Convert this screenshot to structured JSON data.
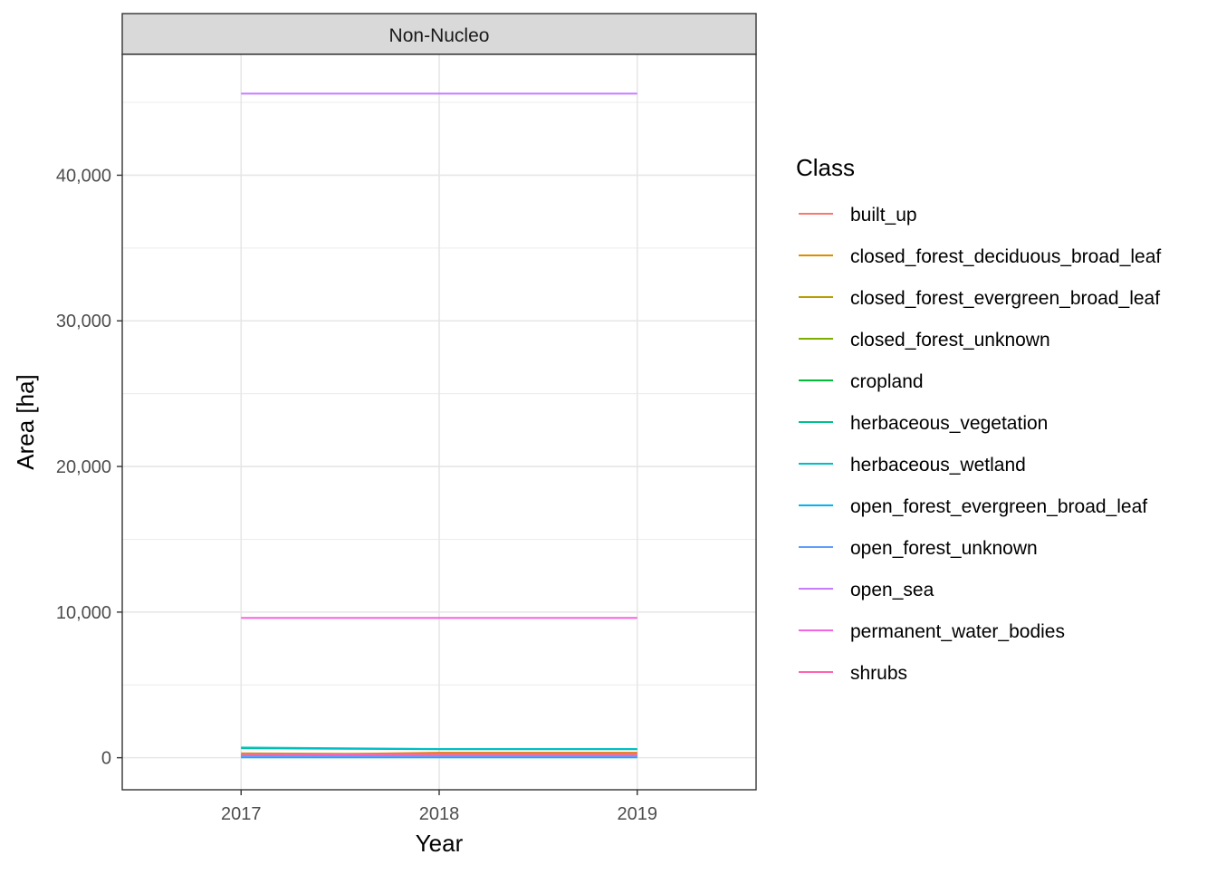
{
  "chart_data": {
    "type": "line",
    "panel_title": "Non-Nucleo",
    "xlabel": "Year",
    "ylabel": "Area [ha]",
    "x": [
      2017,
      2018,
      2019
    ],
    "xlim": [
      2016.4,
      2019.6
    ],
    "ylim": [
      -2200,
      48300
    ],
    "x_ticks": [
      2017,
      2018,
      2019
    ],
    "x_tick_labels": [
      "2017",
      "2018",
      "2019"
    ],
    "y_ticks": [
      0,
      10000,
      20000,
      30000,
      40000
    ],
    "y_tick_labels": [
      "0",
      "10,000",
      "20,000",
      "30,000",
      "40,000"
    ],
    "y_minor_ticks": [
      5000,
      15000,
      25000,
      35000,
      45000
    ],
    "grid": true,
    "legend_title": "Class",
    "legend_position": "right",
    "series": [
      {
        "name": "built_up",
        "color": "#F8766D",
        "values": [
          150,
          350,
          350
        ]
      },
      {
        "name": "closed_forest_deciduous_broad_leaf",
        "color": "#DE8C00",
        "values": [
          200,
          300,
          300
        ]
      },
      {
        "name": "closed_forest_evergreen_broad_leaf",
        "color": "#B79F00",
        "values": [
          300,
          250,
          250
        ]
      },
      {
        "name": "closed_forest_unknown",
        "color": "#7CAE00",
        "values": [
          120,
          120,
          120
        ]
      },
      {
        "name": "cropland",
        "color": "#00BA38",
        "values": [
          80,
          80,
          80
        ]
      },
      {
        "name": "herbaceous_vegetation",
        "color": "#00C08B",
        "values": [
          650,
          580,
          580
        ]
      },
      {
        "name": "herbaceous_wetland",
        "color": "#00BFC4",
        "values": [
          700,
          600,
          600
        ]
      },
      {
        "name": "open_forest_evergreen_broad_leaf",
        "color": "#00B4F0",
        "values": [
          20,
          20,
          20
        ]
      },
      {
        "name": "open_forest_unknown",
        "color": "#619CFF",
        "values": [
          100,
          100,
          100
        ]
      },
      {
        "name": "open_sea",
        "color": "#C77CFF",
        "values": [
          45600,
          45600,
          45600
        ]
      },
      {
        "name": "permanent_water_bodies",
        "color": "#F564E3",
        "values": [
          9600,
          9600,
          9600
        ]
      },
      {
        "name": "shrubs",
        "color": "#FF64B0",
        "values": [
          250,
          200,
          200
        ]
      }
    ]
  }
}
